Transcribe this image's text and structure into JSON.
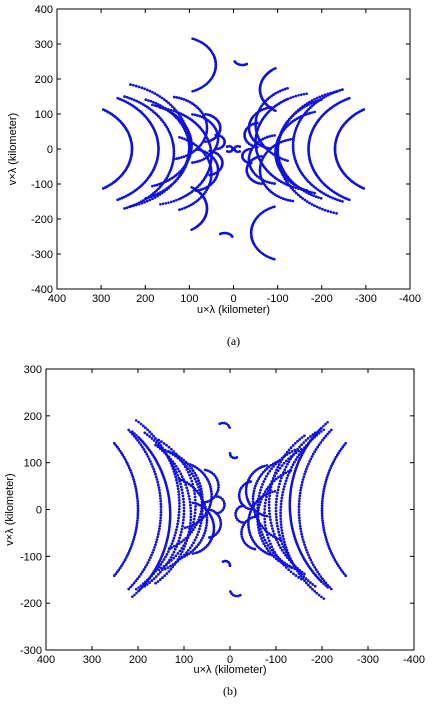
{
  "colors": {
    "points": "#1111dd",
    "axes": "#000000",
    "background": "#ffffff"
  },
  "chart_data": [
    {
      "id": "a",
      "type": "scatter",
      "caption": "(a)",
      "title": "",
      "xlabel": "u×λ (kilometer)",
      "ylabel": "v×λ (kilometer)",
      "xlim": [
        400,
        -400
      ],
      "ylim": [
        -400,
        400
      ],
      "xticks": [
        400,
        300,
        200,
        100,
        0,
        -100,
        -200,
        -300,
        -400
      ],
      "yticks": [
        -400,
        -300,
        -200,
        -100,
        0,
        100,
        200,
        300,
        400
      ],
      "grid": false,
      "arcs": [
        {
          "cx": 360,
          "cy": 0,
          "r": 130,
          "a0": 120,
          "a1": 240,
          "n": 60
        },
        {
          "cx": 330,
          "cy": 0,
          "r": 160,
          "a0": 115,
          "a1": 245,
          "n": 70
        },
        {
          "cx": 305,
          "cy": -10,
          "r": 170,
          "a0": 110,
          "a1": 250,
          "n": 70
        },
        {
          "cx": 280,
          "cy": 10,
          "r": 180,
          "a0": 105,
          "a1": 255,
          "n": 70
        },
        {
          "cx": 250,
          "cy": 0,
          "r": 150,
          "a0": 110,
          "a1": 250,
          "n": 60
        },
        {
          "cx": 215,
          "cy": 10,
          "r": 120,
          "a0": 105,
          "a1": 250,
          "n": 55
        },
        {
          "cx": 190,
          "cy": -20,
          "r": 140,
          "a0": 100,
          "a1": 240,
          "n": 55
        },
        {
          "cx": 150,
          "cy": 60,
          "r": 90,
          "a0": 100,
          "a1": 260,
          "n": 45
        },
        {
          "cx": 160,
          "cy": -70,
          "r": 110,
          "a0": 110,
          "a1": 250,
          "n": 45
        },
        {
          "cx": 105,
          "cy": 30,
          "r": 70,
          "a0": 100,
          "a1": 260,
          "n": 35
        },
        {
          "cx": 95,
          "cy": -60,
          "r": 60,
          "a0": 110,
          "a1": 260,
          "n": 30
        },
        {
          "cx": 70,
          "cy": 60,
          "r": 40,
          "a0": 100,
          "a1": 250,
          "n": 22
        },
        {
          "cx": 60,
          "cy": -40,
          "r": 35,
          "a0": 100,
          "a1": 260,
          "n": 20
        },
        {
          "cx": 40,
          "cy": 20,
          "r": 20,
          "a0": 90,
          "a1": 270,
          "n": 14
        },
        {
          "cx": 130,
          "cy": -170,
          "r": 70,
          "a0": 130,
          "a1": 240,
          "n": 30
        },
        {
          "cx": 120,
          "cy": 240,
          "r": 80,
          "a0": 110,
          "a1": 200,
          "n": 30
        },
        {
          "cx": -360,
          "cy": 0,
          "r": 130,
          "a0": -60,
          "a1": 60,
          "n": 60
        },
        {
          "cx": -330,
          "cy": 0,
          "r": 160,
          "a0": -65,
          "a1": 65,
          "n": 70
        },
        {
          "cx": -305,
          "cy": 10,
          "r": 170,
          "a0": -70,
          "a1": 70,
          "n": 70
        },
        {
          "cx": -280,
          "cy": -10,
          "r": 180,
          "a0": -75,
          "a1": 75,
          "n": 70
        },
        {
          "cx": -250,
          "cy": 0,
          "r": 150,
          "a0": -70,
          "a1": 70,
          "n": 60
        },
        {
          "cx": -215,
          "cy": -10,
          "r": 120,
          "a0": -70,
          "a1": 75,
          "n": 55
        },
        {
          "cx": -190,
          "cy": 20,
          "r": 140,
          "a0": -60,
          "a1": 80,
          "n": 55
        },
        {
          "cx": -150,
          "cy": -60,
          "r": 90,
          "a0": -80,
          "a1": 80,
          "n": 45
        },
        {
          "cx": -160,
          "cy": 70,
          "r": 110,
          "a0": -70,
          "a1": 70,
          "n": 45
        },
        {
          "cx": -105,
          "cy": -30,
          "r": 70,
          "a0": -80,
          "a1": 80,
          "n": 35
        },
        {
          "cx": -95,
          "cy": 60,
          "r": 60,
          "a0": -80,
          "a1": 70,
          "n": 30
        },
        {
          "cx": -70,
          "cy": -60,
          "r": 40,
          "a0": -70,
          "a1": 80,
          "n": 22
        },
        {
          "cx": -60,
          "cy": 40,
          "r": 35,
          "a0": -80,
          "a1": 80,
          "n": 20
        },
        {
          "cx": -40,
          "cy": -20,
          "r": 20,
          "a0": -90,
          "a1": 90,
          "n": 14
        },
        {
          "cx": -130,
          "cy": 170,
          "r": 70,
          "a0": -60,
          "a1": 50,
          "n": 30
        },
        {
          "cx": -120,
          "cy": -240,
          "r": 80,
          "a0": -20,
          "a1": 70,
          "n": 30
        },
        {
          "cx": 20,
          "cy": -260,
          "r": 20,
          "a0": 60,
          "a1": 150,
          "n": 8
        },
        {
          "cx": -20,
          "cy": 260,
          "r": 20,
          "a0": -120,
          "a1": -30,
          "n": 8
        },
        {
          "cx": 10,
          "cy": 0,
          "r": 8,
          "a0": 60,
          "a1": 300,
          "n": 8
        },
        {
          "cx": -10,
          "cy": 0,
          "r": 8,
          "a0": -120,
          "a1": 120,
          "n": 8
        }
      ]
    },
    {
      "id": "b",
      "type": "scatter",
      "caption": "(b)",
      "title": "",
      "xlabel": "u×λ (kilometer)",
      "ylabel": "v×λ (kilometer)",
      "xlim": [
        400,
        -400
      ],
      "ylim": [
        -300,
        300
      ],
      "xticks": [
        400,
        300,
        200,
        100,
        0,
        -100,
        -200,
        -300,
        -400
      ],
      "yticks": [
        -300,
        -200,
        -100,
        0,
        100,
        200,
        300
      ],
      "grid": false,
      "arcs": [
        {
          "cx": 420,
          "cy": 0,
          "r": 220,
          "a0": 140,
          "a1": 220,
          "n": 60
        },
        {
          "cx": 390,
          "cy": 0,
          "r": 240,
          "a0": 135,
          "a1": 225,
          "n": 65
        },
        {
          "cx": 360,
          "cy": -10,
          "r": 230,
          "a0": 130,
          "a1": 225,
          "n": 65
        },
        {
          "cx": 330,
          "cy": 10,
          "r": 220,
          "a0": 125,
          "a1": 230,
          "n": 65
        },
        {
          "cx": 300,
          "cy": 0,
          "r": 200,
          "a0": 125,
          "a1": 235,
          "n": 60
        },
        {
          "cx": 265,
          "cy": -10,
          "r": 180,
          "a0": 125,
          "a1": 235,
          "n": 55
        },
        {
          "cx": 235,
          "cy": 10,
          "r": 160,
          "a0": 120,
          "a1": 240,
          "n": 50
        },
        {
          "cx": 200,
          "cy": 0,
          "r": 140,
          "a0": 115,
          "a1": 245,
          "n": 50
        },
        {
          "cx": 170,
          "cy": 20,
          "r": 110,
          "a0": 110,
          "a1": 250,
          "n": 45
        },
        {
          "cx": 140,
          "cy": -20,
          "r": 90,
          "a0": 110,
          "a1": 250,
          "n": 40
        },
        {
          "cx": 110,
          "cy": 30,
          "r": 70,
          "a0": 100,
          "a1": 250,
          "n": 34
        },
        {
          "cx": 90,
          "cy": -40,
          "r": 55,
          "a0": 110,
          "a1": 260,
          "n": 28
        },
        {
          "cx": 60,
          "cy": 50,
          "r": 35,
          "a0": 100,
          "a1": 260,
          "n": 20
        },
        {
          "cx": 50,
          "cy": -30,
          "r": 30,
          "a0": 100,
          "a1": 260,
          "n": 18
        },
        {
          "cx": 30,
          "cy": 10,
          "r": 18,
          "a0": 90,
          "a1": 270,
          "n": 12
        },
        {
          "cx": -420,
          "cy": 0,
          "r": 220,
          "a0": -40,
          "a1": 40,
          "n": 60
        },
        {
          "cx": -390,
          "cy": 0,
          "r": 240,
          "a0": -45,
          "a1": 45,
          "n": 65
        },
        {
          "cx": -360,
          "cy": 10,
          "r": 230,
          "a0": -45,
          "a1": 50,
          "n": 65
        },
        {
          "cx": -330,
          "cy": -10,
          "r": 220,
          "a0": -50,
          "a1": 55,
          "n": 65
        },
        {
          "cx": -300,
          "cy": 0,
          "r": 200,
          "a0": -55,
          "a1": 55,
          "n": 60
        },
        {
          "cx": -265,
          "cy": 10,
          "r": 180,
          "a0": -55,
          "a1": 55,
          "n": 55
        },
        {
          "cx": -235,
          "cy": -10,
          "r": 160,
          "a0": -60,
          "a1": 60,
          "n": 50
        },
        {
          "cx": -200,
          "cy": 0,
          "r": 140,
          "a0": -65,
          "a1": 65,
          "n": 50
        },
        {
          "cx": -170,
          "cy": -20,
          "r": 110,
          "a0": -70,
          "a1": 70,
          "n": 45
        },
        {
          "cx": -140,
          "cy": 20,
          "r": 90,
          "a0": -70,
          "a1": 70,
          "n": 40
        },
        {
          "cx": -110,
          "cy": -30,
          "r": 70,
          "a0": -70,
          "a1": 80,
          "n": 34
        },
        {
          "cx": -90,
          "cy": 40,
          "r": 55,
          "a0": -80,
          "a1": 70,
          "n": 28
        },
        {
          "cx": -60,
          "cy": -50,
          "r": 35,
          "a0": -80,
          "a1": 80,
          "n": 20
        },
        {
          "cx": -50,
          "cy": 30,
          "r": 30,
          "a0": -80,
          "a1": 80,
          "n": 18
        },
        {
          "cx": -30,
          "cy": -10,
          "r": 18,
          "a0": -90,
          "a1": 90,
          "n": 12
        },
        {
          "cx": 15,
          "cy": 170,
          "r": 15,
          "a0": 60,
          "a1": 160,
          "n": 6
        },
        {
          "cx": -15,
          "cy": -170,
          "r": 15,
          "a0": -120,
          "a1": -20,
          "n": 6
        },
        {
          "cx": 10,
          "cy": -120,
          "r": 10,
          "a0": 60,
          "a1": 180,
          "n": 6
        },
        {
          "cx": -10,
          "cy": 120,
          "r": 10,
          "a0": -120,
          "a1": 0,
          "n": 6
        }
      ]
    }
  ]
}
